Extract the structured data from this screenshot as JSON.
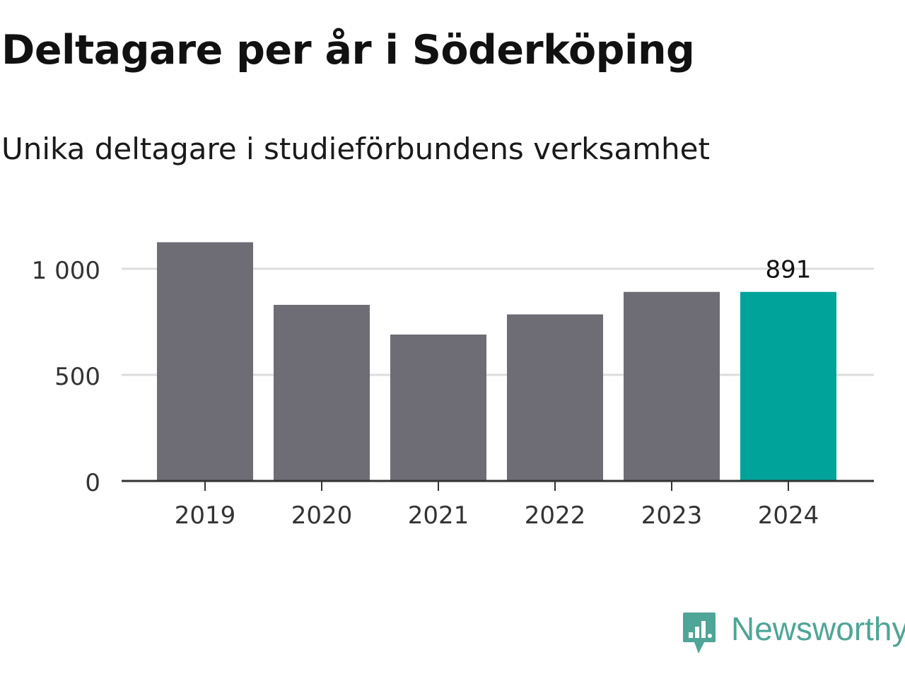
{
  "chart_data": {
    "type": "bar",
    "title": "Deltagare per år i Söderköping",
    "subtitle": "Unika deltagare i studieförbundens verksamhet",
    "categories": [
      "2019",
      "2020",
      "2021",
      "2022",
      "2023",
      "2024"
    ],
    "values": [
      1125,
      830,
      690,
      785,
      891,
      891
    ],
    "ylim": [
      0,
      1000
    ],
    "yticks": [
      0,
      500,
      1000
    ],
    "ytick_labels": [
      "0",
      "500",
      "1 000"
    ],
    "highlight_index": 5,
    "highlight_label": "891",
    "grid": true,
    "colors": {
      "bar": "#6e6d75",
      "highlight": "#00a39a",
      "grid": "#dddddd",
      "axis": "#333333"
    }
  },
  "brand": {
    "name": "Newsworthy",
    "color": "#4fa597",
    "icon": "newsworthy-logo-icon"
  }
}
